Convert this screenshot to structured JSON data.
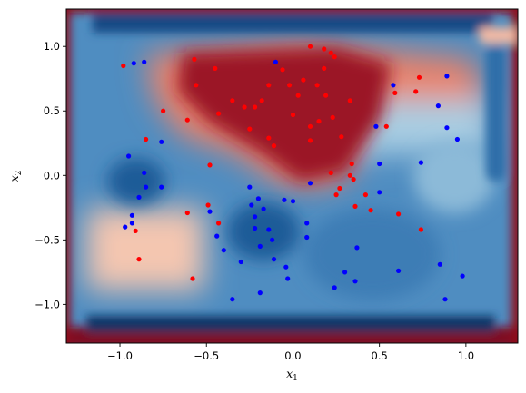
{
  "chart_data": {
    "type": "scatter",
    "title": "",
    "xlabel": "x",
    "xlabel_sub": "1",
    "ylabel": "x",
    "ylabel_sub": "2",
    "xlim": [
      -1.31,
      1.3
    ],
    "ylim": [
      -1.3,
      1.29
    ],
    "xticks": [
      {
        "value": -1.0,
        "label": "−1.0"
      },
      {
        "value": -0.5,
        "label": "−0.5"
      },
      {
        "value": 0.0,
        "label": "0.0"
      },
      {
        "value": 0.5,
        "label": "0.5"
      },
      {
        "value": 1.0,
        "label": "1.0"
      }
    ],
    "yticks": [
      {
        "value": -1.0,
        "label": "−1.0"
      },
      {
        "value": -0.5,
        "label": "−0.5"
      },
      {
        "value": 0.0,
        "label": "0.0"
      },
      {
        "value": 0.5,
        "label": "0.5"
      },
      {
        "value": 1.0,
        "label": "1.0"
      }
    ],
    "grid": false,
    "legend": "none",
    "background": "decision-function heatmap, diverging red-white-blue colormap",
    "colors": {
      "class_red": "#ff0000",
      "class_blue": "#0000ff",
      "heat_red": "#8b0a1a",
      "heat_blue": "#0b3a6e"
    },
    "series": [
      {
        "color": "#ff0000",
        "points": [
          [
            -0.98,
            0.85
          ],
          [
            -0.57,
            0.9
          ],
          [
            -0.45,
            0.83
          ],
          [
            -0.56,
            0.7
          ],
          [
            -0.75,
            0.5
          ],
          [
            -0.61,
            0.43
          ],
          [
            -0.43,
            0.48
          ],
          [
            -0.35,
            0.58
          ],
          [
            -0.28,
            0.53
          ],
          [
            -0.22,
            0.53
          ],
          [
            -0.18,
            0.58
          ],
          [
            -0.14,
            0.7
          ],
          [
            -0.25,
            0.36
          ],
          [
            -0.14,
            0.29
          ],
          [
            -0.11,
            0.23
          ],
          [
            -0.06,
            0.82
          ],
          [
            -0.02,
            0.7
          ],
          [
            0.0,
            0.47
          ],
          [
            0.03,
            0.62
          ],
          [
            0.06,
            0.74
          ],
          [
            0.1,
            1.0
          ],
          [
            0.18,
            0.98
          ],
          [
            0.22,
            0.95
          ],
          [
            0.24,
            0.92
          ],
          [
            0.14,
            0.7
          ],
          [
            0.18,
            0.83
          ],
          [
            0.19,
            0.62
          ],
          [
            0.23,
            0.45
          ],
          [
            0.1,
            0.38
          ],
          [
            0.1,
            0.27
          ],
          [
            0.15,
            0.42
          ],
          [
            0.28,
            0.3
          ],
          [
            0.33,
            0.58
          ],
          [
            0.34,
            0.09
          ],
          [
            0.33,
            0.0
          ],
          [
            0.22,
            0.02
          ],
          [
            0.27,
            -0.1
          ],
          [
            0.25,
            -0.15
          ],
          [
            0.35,
            -0.03
          ],
          [
            0.36,
            -0.24
          ],
          [
            0.42,
            -0.15
          ],
          [
            0.45,
            -0.27
          ],
          [
            0.54,
            0.38
          ],
          [
            0.59,
            0.64
          ],
          [
            0.71,
            0.65
          ],
          [
            0.73,
            0.76
          ],
          [
            0.61,
            -0.3
          ],
          [
            0.74,
            -0.42
          ],
          [
            -0.85,
            0.28
          ],
          [
            -0.48,
            0.08
          ],
          [
            -0.49,
            -0.23
          ],
          [
            -0.61,
            -0.29
          ],
          [
            -0.43,
            -0.37
          ],
          [
            -0.91,
            -0.43
          ],
          [
            -0.89,
            -0.65
          ],
          [
            -0.58,
            -0.8
          ]
        ]
      },
      {
        "color": "#0000ff",
        "points": [
          [
            -0.92,
            0.87
          ],
          [
            -0.86,
            0.88
          ],
          [
            -0.1,
            0.88
          ],
          [
            -0.76,
            0.26
          ],
          [
            -0.95,
            0.15
          ],
          [
            -0.86,
            0.02
          ],
          [
            -0.85,
            -0.09
          ],
          [
            -0.76,
            -0.09
          ],
          [
            -0.89,
            -0.17
          ],
          [
            -0.93,
            -0.31
          ],
          [
            -0.93,
            -0.37
          ],
          [
            -0.97,
            -0.4
          ],
          [
            -0.48,
            -0.28
          ],
          [
            -0.44,
            -0.47
          ],
          [
            -0.4,
            -0.58
          ],
          [
            -0.25,
            -0.09
          ],
          [
            -0.2,
            -0.18
          ],
          [
            -0.24,
            -0.23
          ],
          [
            -0.17,
            -0.26
          ],
          [
            -0.22,
            -0.32
          ],
          [
            -0.22,
            -0.41
          ],
          [
            -0.14,
            -0.42
          ],
          [
            -0.19,
            -0.55
          ],
          [
            -0.12,
            -0.5
          ],
          [
            -0.3,
            -0.67
          ],
          [
            -0.11,
            -0.65
          ],
          [
            -0.05,
            -0.19
          ],
          [
            0.0,
            -0.2
          ],
          [
            0.08,
            -0.37
          ],
          [
            0.08,
            -0.48
          ],
          [
            -0.04,
            -0.71
          ],
          [
            -0.03,
            -0.8
          ],
          [
            -0.35,
            -0.96
          ],
          [
            -0.19,
            -0.91
          ],
          [
            0.1,
            -0.06
          ],
          [
            0.48,
            0.38
          ],
          [
            0.5,
            0.09
          ],
          [
            0.5,
            -0.13
          ],
          [
            0.58,
            0.7
          ],
          [
            0.74,
            0.1
          ],
          [
            0.89,
            0.77
          ],
          [
            0.84,
            0.54
          ],
          [
            0.89,
            0.37
          ],
          [
            0.95,
            0.28
          ],
          [
            0.37,
            -0.56
          ],
          [
            0.36,
            -0.82
          ],
          [
            0.3,
            -0.75
          ],
          [
            0.24,
            -0.87
          ],
          [
            0.61,
            -0.74
          ],
          [
            0.85,
            -0.69
          ],
          [
            0.98,
            -0.78
          ],
          [
            0.88,
            -0.96
          ]
        ]
      }
    ]
  }
}
